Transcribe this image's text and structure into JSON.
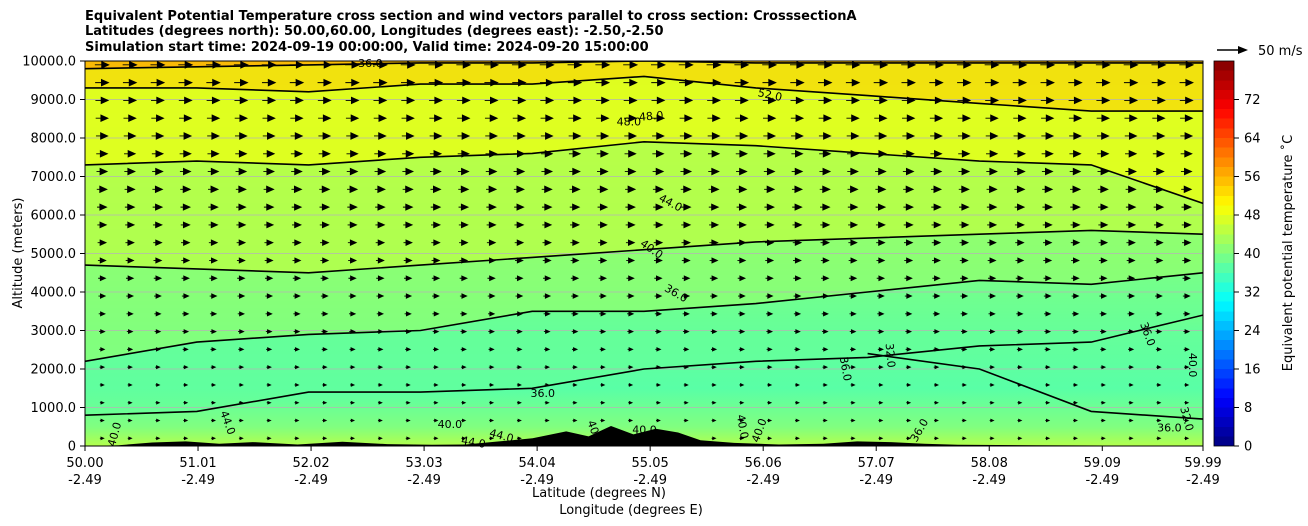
{
  "chart_data": {
    "type": "heatmap",
    "title_lines": [
      "Equivalent Potential Temperature cross section and wind vectors parallel to cross section: CrosssectionA",
      "Latitudes (degrees north): 50.00,60.00, Longitudes (degrees east): -2.50,-2.50",
      "Simulation start time: 2024-09-19 00:00:00, Valid time: 2024-09-20 15:00:00"
    ],
    "ylabel": "Altitude (meters)",
    "xlabel_1": "Latitude (degrees N)",
    "xlabel_2": "Longitude (degrees E)",
    "ylim": [
      0,
      10000
    ],
    "y_ticks": [
      "0",
      "1000.0",
      "2000.0",
      "3000.0",
      "4000.0",
      "5000.0",
      "6000.0",
      "7000.0",
      "8000.0",
      "9000.0",
      "10000.0"
    ],
    "y_tick_values": [
      0,
      1000,
      2000,
      3000,
      4000,
      5000,
      6000,
      7000,
      8000,
      9000,
      10000
    ],
    "xlim": [
      50.0,
      59.99
    ],
    "x_ticks": [
      {
        "value": 50.0,
        "lat": "50.00",
        "lon": "-2.49"
      },
      {
        "value": 51.01,
        "lat": "51.01",
        "lon": "-2.49"
      },
      {
        "value": 52.02,
        "lat": "52.02",
        "lon": "-2.49"
      },
      {
        "value": 53.03,
        "lat": "53.03",
        "lon": "-2.49"
      },
      {
        "value": 54.04,
        "lat": "54.04",
        "lon": "-2.49"
      },
      {
        "value": 55.05,
        "lat": "55.05",
        "lon": "-2.49"
      },
      {
        "value": 56.06,
        "lat": "56.06",
        "lon": "-2.49"
      },
      {
        "value": 57.07,
        "lat": "57.07",
        "lon": "-2.49"
      },
      {
        "value": 58.08,
        "lat": "58.08",
        "lon": "-2.49"
      },
      {
        "value": 59.09,
        "lat": "59.09",
        "lon": "-2.49"
      },
      {
        "value": 59.99,
        "lat": "59.99",
        "lon": "-2.49"
      }
    ],
    "colorbar": {
      "label": "Equivalent potential temperature ˚C",
      "range": [
        0,
        80
      ],
      "ticks": [
        "0",
        "8",
        "16",
        "24",
        "32",
        "40",
        "48",
        "56",
        "64",
        "72"
      ],
      "tick_values": [
        0,
        8,
        16,
        24,
        32,
        40,
        48,
        56,
        64,
        72
      ],
      "colormap": "jet"
    },
    "quiver_key": "50 m/s",
    "contour_levels": [
      {
        "level": 32,
        "alt": [
          null,
          null,
          null,
          null,
          null,
          null,
          null,
          2400,
          2000,
          900,
          700
        ]
      },
      {
        "level": 36,
        "alt": [
          800,
          900,
          1400,
          1400,
          1500,
          2000,
          2200,
          2300,
          2600,
          2700,
          3400
        ]
      },
      {
        "level": 40,
        "alt": [
          2200,
          2700,
          2900,
          3000,
          3500,
          3500,
          3700,
          4000,
          4300,
          4200,
          4500
        ]
      },
      {
        "level": 44,
        "alt": [
          4700,
          4600,
          4500,
          4700,
          4900,
          5100,
          5300,
          5400,
          5500,
          5600,
          5500
        ]
      },
      {
        "level": 48,
        "alt": [
          7300,
          7400,
          7300,
          7500,
          7600,
          7900,
          7800,
          7600,
          7400,
          7300,
          6300
        ]
      },
      {
        "level": 52,
        "alt": [
          9300,
          9300,
          9200,
          9400,
          9400,
          9600,
          9300,
          9100,
          8900,
          8700,
          8700
        ]
      },
      {
        "level": 56,
        "alt": [
          9800,
          9850,
          9900,
          9950,
          9950,
          10000,
          9950,
          9950,
          9950,
          9950,
          9950
        ]
      }
    ],
    "contour_labels": [
      {
        "text": "36.0",
        "x": 52.55,
        "y": 9920,
        "rot": 0
      },
      {
        "text": "52.0",
        "x": 56.12,
        "y": 9100,
        "rot": 12
      },
      {
        "text": "48.0",
        "x": 54.86,
        "y": 8400,
        "rot": 0
      },
      {
        "text": "48.0",
        "x": 55.06,
        "y": 8550,
        "rot": -5
      },
      {
        "text": "44.0",
        "x": 55.23,
        "y": 6300,
        "rot": 28
      },
      {
        "text": "40.0",
        "x": 55.06,
        "y": 5100,
        "rot": 35
      },
      {
        "text": "36.0",
        "x": 55.28,
        "y": 3950,
        "rot": 30
      },
      {
        "text": "36.0",
        "x": 54.09,
        "y": 1350,
        "rot": 0
      },
      {
        "text": "40.0",
        "x": 53.26,
        "y": 550,
        "rot": 0
      },
      {
        "text": "44.0",
        "x": 53.47,
        "y": 80,
        "rot": 10
      },
      {
        "text": "44.0",
        "x": 53.72,
        "y": 250,
        "rot": 15
      },
      {
        "text": "44.0",
        "x": 51.27,
        "y": 600,
        "rot": 70
      },
      {
        "text": "40.0",
        "x": 50.27,
        "y": 300,
        "rot": -75
      },
      {
        "text": "40.0",
        "x": 55.0,
        "y": 400,
        "rot": 0
      },
      {
        "text": "40.0",
        "x": 54.55,
        "y": 350,
        "rot": 70
      },
      {
        "text": "40.0",
        "x": 55.87,
        "y": 500,
        "rot": 80
      },
      {
        "text": "40.0",
        "x": 56.03,
        "y": 400,
        "rot": -70
      },
      {
        "text": "36.0",
        "x": 56.79,
        "y": 2000,
        "rot": 80
      },
      {
        "text": "32.0",
        "x": 57.19,
        "y": 2350,
        "rot": 85
      },
      {
        "text": "36.0",
        "x": 57.46,
        "y": 400,
        "rot": -60
      },
      {
        "text": "36.0",
        "x": 59.49,
        "y": 2900,
        "rot": 70
      },
      {
        "text": "40.0",
        "x": 59.89,
        "y": 2100,
        "rot": 90
      },
      {
        "text": "32.0",
        "x": 59.84,
        "y": 700,
        "rot": 75
      },
      {
        "text": "36.0",
        "x": 59.69,
        "y": 450,
        "rot": 0
      }
    ]
  }
}
